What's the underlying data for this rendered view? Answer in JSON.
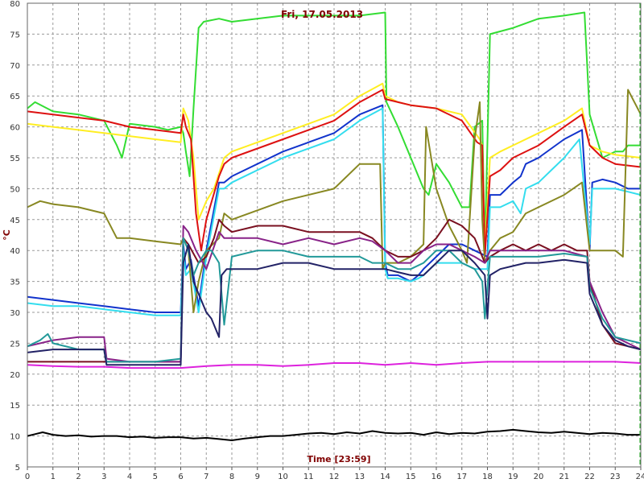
{
  "chart_data": {
    "type": "line",
    "title": "Fri, 17.05.2013",
    "xlabel": "Time [23:59]",
    "ylabel": "°C",
    "xlim": [
      0,
      24
    ],
    "ylim": [
      5,
      80
    ],
    "xticks": [
      "0",
      "1",
      "2",
      "3",
      "4",
      "5",
      "6",
      "7",
      "8",
      "9",
      "10",
      "11",
      "12",
      "13",
      "14",
      "15",
      "16",
      "17",
      "18",
      "19",
      "20",
      "21",
      "22",
      "23",
      "24"
    ],
    "yticks": [
      "5",
      "10",
      "15",
      "20",
      "25",
      "30",
      "35",
      "40",
      "45",
      "50",
      "55",
      "60",
      "65",
      "70",
      "75",
      "80"
    ],
    "grid": true,
    "end_marker_x": 24,
    "series": [
      {
        "color": "#33dd33",
        "x": [
          0,
          0.3,
          1,
          2,
          3,
          3.5,
          3.7,
          4,
          5,
          5.5,
          6,
          6.1,
          6.2,
          6.35,
          6.5,
          6.7,
          6.9,
          7.5,
          8,
          10,
          12,
          13,
          14,
          14.05,
          14.5,
          15,
          15.5,
          15.7,
          16,
          16.5,
          17,
          17.3,
          17.5,
          17.8,
          17.9,
          18.1,
          19,
          20,
          21,
          21.8,
          22,
          22.5,
          23,
          23.3,
          23.5,
          24
        ],
        "y": [
          63,
          64,
          62.5,
          62,
          61,
          57,
          55,
          60.5,
          60,
          59.5,
          60,
          59,
          56,
          52,
          63,
          76,
          77,
          77.5,
          77,
          78,
          78,
          78,
          78.5,
          64,
          60,
          55,
          50,
          49,
          54,
          51,
          47,
          47,
          60,
          61,
          40,
          75,
          76,
          77.5,
          78,
          78.5,
          62,
          55,
          56,
          56,
          57,
          57
        ]
      },
      {
        "color": "#ffee22",
        "x": [
          0,
          1,
          2,
          3,
          4,
          5,
          6,
          6.1,
          6.3,
          6.5,
          6.7,
          7,
          7.3,
          7.7,
          8,
          10,
          12,
          13,
          13.9,
          14,
          14.5,
          15,
          16,
          17,
          17.7,
          17.8,
          17.9,
          18.1,
          18.5,
          19,
          20,
          21,
          21.7,
          22,
          22.5,
          23,
          24
        ],
        "y": [
          60.5,
          60,
          59.5,
          59,
          58.5,
          58,
          57.5,
          63,
          61,
          55,
          45,
          48,
          50,
          55,
          56,
          59,
          62,
          65,
          67,
          65,
          64,
          63.5,
          63,
          62,
          58,
          57,
          40,
          55,
          56,
          57,
          59,
          61,
          63,
          57,
          56,
          55.5,
          55
        ]
      },
      {
        "color": "#dd1111",
        "x": [
          0,
          1,
          2,
          3,
          4,
          5,
          6,
          6.1,
          6.2,
          6.4,
          6.6,
          6.8,
          7,
          7.5,
          7.7,
          8,
          10,
          12,
          13,
          13.9,
          14,
          14.5,
          15,
          16,
          17,
          17.6,
          17.8,
          17.9,
          18.1,
          18.5,
          19,
          20,
          21,
          21.7,
          22,
          22.5,
          23,
          24
        ],
        "y": [
          62.5,
          62,
          61.5,
          61,
          60,
          59.5,
          59,
          62,
          60,
          58,
          46,
          40,
          45,
          52,
          54,
          55,
          58,
          61,
          64,
          66,
          64.5,
          64,
          63.5,
          63,
          61,
          57.5,
          57,
          39,
          52,
          53,
          55,
          57,
          60,
          62,
          57,
          55,
          54,
          53.5
        ]
      },
      {
        "color": "#1133cc",
        "x": [
          0,
          1,
          2,
          3,
          4,
          5,
          6,
          6.1,
          6.2,
          6.4,
          6.7,
          7,
          7.5,
          7.7,
          8,
          10,
          12,
          13,
          13.9,
          14,
          14.1,
          14.5,
          15,
          15.3,
          15.5,
          16,
          16.5,
          17,
          17.5,
          18,
          18.1,
          18.5,
          19,
          19.3,
          19.5,
          20,
          21,
          21.7,
          22,
          22.1,
          22.5,
          23,
          23.5,
          24
        ],
        "y": [
          32.5,
          32,
          31.5,
          31,
          30.5,
          30,
          30,
          41,
          37,
          38.5,
          31,
          40,
          51,
          51,
          52,
          56,
          59,
          62,
          63.5,
          38,
          36,
          36,
          35,
          36,
          37,
          39,
          41,
          41,
          40,
          39,
          49,
          49,
          51,
          52,
          54,
          55,
          58,
          59.5,
          40,
          51,
          51.5,
          51,
          50,
          50
        ]
      },
      {
        "color": "#33ddee",
        "x": [
          0,
          1,
          2,
          3,
          4,
          5,
          6,
          6.1,
          6.2,
          6.4,
          6.7,
          7,
          7.5,
          7.7,
          8,
          10,
          12,
          13,
          13.9,
          14,
          14.1,
          14.5,
          15,
          15.3,
          15.5,
          16,
          16.5,
          17,
          17.5,
          18,
          18.1,
          18.5,
          19,
          19.3,
          19.5,
          20,
          21,
          21.6,
          22,
          22.1,
          22.5,
          23,
          23.5,
          24
        ],
        "y": [
          31.5,
          31,
          31,
          30.5,
          30,
          29.5,
          29.5,
          40,
          36,
          37,
          30,
          39,
          50,
          50,
          51,
          55,
          58,
          61,
          63,
          37,
          35.5,
          35.5,
          35,
          35.5,
          36,
          38,
          38,
          38,
          37,
          37,
          47,
          47,
          48,
          46,
          50,
          51,
          55,
          58,
          41,
          50,
          50,
          50,
          49.5,
          49
        ]
      },
      {
        "color": "#888822",
        "x": [
          0,
          0.5,
          1,
          2,
          3,
          3.5,
          4,
          5,
          6,
          6.1,
          6.3,
          6.5,
          6.7,
          7,
          7.5,
          7.7,
          8,
          10,
          12,
          13,
          13.8,
          13.9,
          14,
          14.5,
          15,
          15.5,
          15.6,
          15.8,
          16,
          16.5,
          17,
          17.2,
          17.5,
          17.7,
          17.8,
          17.9,
          18.1,
          18.5,
          19,
          19.5,
          20,
          21,
          21.7,
          22,
          22.5,
          23,
          23.3,
          23.5,
          24
        ],
        "y": [
          47,
          48,
          47.5,
          47,
          46,
          42,
          42,
          41.5,
          41,
          42,
          40,
          30,
          35,
          40,
          42,
          46,
          45,
          48,
          50,
          54,
          54,
          37,
          38,
          38,
          39,
          41,
          60,
          55,
          50,
          44,
          40,
          38,
          58,
          64,
          45,
          38,
          40,
          42,
          43,
          46,
          47,
          49,
          51,
          40,
          40,
          40,
          39,
          66,
          62
        ]
      },
      {
        "color": "#7a1020",
        "x": [
          0,
          1,
          2,
          3,
          4,
          5,
          6,
          6.1,
          6.3,
          6.7,
          7,
          7.3,
          7.5,
          7.7,
          8,
          9,
          10,
          11,
          12,
          13,
          13.5,
          14,
          14.5,
          15,
          15.5,
          16,
          16.5,
          17,
          17.5,
          17.7,
          17.9,
          18.1,
          18.5,
          19,
          19.5,
          20,
          20.5,
          21,
          21.5,
          21.9,
          22,
          22.5,
          23,
          23.5,
          24
        ],
        "y": [
          22,
          22,
          22,
          22,
          22,
          22,
          22,
          42,
          41,
          38,
          39,
          42,
          45,
          44,
          43,
          44,
          44,
          43,
          43,
          43,
          42,
          40,
          39,
          39,
          40,
          42,
          45,
          44,
          42,
          40,
          38,
          39,
          40,
          41,
          40,
          41,
          40,
          41,
          40,
          40,
          35,
          28,
          25,
          24.5,
          24
        ]
      },
      {
        "color": "#882288",
        "x": [
          0,
          1,
          2,
          3,
          3.1,
          4,
          5,
          6,
          6.1,
          6.3,
          6.6,
          7,
          7.5,
          7.7,
          8,
          9,
          10,
          11,
          12,
          13,
          13.5,
          14,
          14.5,
          15,
          15.5,
          16,
          16.5,
          17,
          17.5,
          17.9,
          18.1,
          18.5,
          19,
          19.5,
          20,
          21,
          21.9,
          22,
          22.5,
          23,
          23.5,
          24
        ],
        "y": [
          24.5,
          25.5,
          26,
          26,
          22.5,
          22,
          22,
          22,
          44,
          43,
          40,
          37,
          43,
          42,
          42,
          42,
          41,
          42,
          41,
          42,
          41.5,
          40,
          38,
          38,
          40,
          41,
          41,
          40,
          39,
          38,
          40,
          40,
          40,
          40,
          40,
          40,
          39,
          35,
          30,
          26,
          25,
          24
        ]
      },
      {
        "color": "#229999",
        "x": [
          0,
          0.5,
          0.8,
          1,
          2,
          3,
          3.1,
          4,
          5,
          6,
          6.1,
          6.3,
          6.5,
          6.7,
          7,
          7.2,
          7.5,
          7.7,
          8,
          9,
          10,
          11,
          12,
          13,
          13.5,
          14,
          14.5,
          15,
          15.5,
          16,
          16.5,
          17,
          17.5,
          17.8,
          17.9,
          18,
          18.1,
          18.5,
          19,
          19.5,
          20,
          21,
          21.9,
          22,
          22.5,
          23,
          23.5,
          24
        ],
        "y": [
          24.5,
          25.5,
          26.5,
          25,
          24,
          24,
          22,
          22,
          22,
          22.5,
          42,
          40,
          36,
          38,
          40,
          40,
          38,
          28,
          39,
          40,
          40,
          39,
          39,
          39,
          38,
          38,
          37,
          37,
          38,
          40,
          40,
          38,
          37,
          35,
          29,
          34,
          39,
          39,
          39,
          39,
          39,
          39.5,
          39,
          34,
          29,
          26,
          25.5,
          25
        ]
      },
      {
        "color": "#222266",
        "x": [
          0,
          1,
          2,
          3,
          3.1,
          4,
          5,
          6,
          6.1,
          6.3,
          6.5,
          6.7,
          7,
          7.2,
          7.5,
          7.6,
          7.8,
          8,
          9,
          10,
          11,
          12,
          13,
          13.5,
          14,
          14.5,
          15,
          15.5,
          16,
          16.5,
          17,
          17.5,
          17.9,
          18,
          18.1,
          18.5,
          19,
          19.5,
          20,
          21,
          21.9,
          22,
          22.5,
          23,
          23.5,
          24
        ],
        "y": [
          23.5,
          24,
          24,
          24,
          21.5,
          21.5,
          21.5,
          21.5,
          38,
          41,
          35,
          33,
          30,
          29,
          26,
          36,
          37,
          37,
          37,
          38,
          38,
          37,
          37,
          37,
          37,
          36.5,
          36,
          36,
          38,
          40,
          40,
          38,
          36,
          29,
          36,
          37,
          37.5,
          38,
          38,
          38.5,
          38,
          33,
          28,
          25.5,
          24.5,
          24
        ]
      },
      {
        "color": "#dd22dd",
        "x": [
          0,
          1,
          2,
          3,
          4,
          5,
          6,
          7,
          8,
          9,
          10,
          11,
          12,
          13,
          14,
          15,
          16,
          17,
          18,
          19,
          20,
          21,
          22,
          23,
          24
        ],
        "y": [
          21.5,
          21.3,
          21.2,
          21.2,
          21,
          21,
          21,
          21.3,
          21.5,
          21.5,
          21.3,
          21.5,
          21.8,
          21.8,
          21.5,
          21.8,
          21.5,
          21.8,
          22,
          22,
          22,
          22,
          22,
          22,
          21.8
        ]
      },
      {
        "color": "#000000",
        "x": [
          0,
          0.3,
          0.6,
          1,
          1.5,
          2,
          2.5,
          3,
          3.5,
          4,
          4.5,
          5,
          5.5,
          6,
          6.5,
          7,
          7.5,
          8,
          8.5,
          9,
          9.5,
          10,
          10.5,
          11,
          11.5,
          12,
          12.5,
          13,
          13.5,
          14,
          14.5,
          15,
          15.5,
          16,
          16.5,
          17,
          17.5,
          18,
          18.5,
          19,
          19.5,
          20,
          20.5,
          21,
          21.5,
          22,
          22.5,
          23,
          23.5,
          24
        ],
        "y": [
          10,
          10.3,
          10.6,
          10.2,
          10,
          10.1,
          9.9,
          10,
          10,
          9.8,
          9.9,
          9.7,
          9.8,
          9.8,
          9.6,
          9.7,
          9.5,
          9.3,
          9.6,
          9.8,
          10,
          10,
          10.2,
          10.4,
          10.5,
          10.3,
          10.6,
          10.4,
          10.8,
          10.5,
          10.4,
          10.5,
          10.2,
          10.6,
          10.3,
          10.5,
          10.4,
          10.7,
          10.8,
          11,
          10.8,
          10.6,
          10.5,
          10.7,
          10.5,
          10.3,
          10.5,
          10.4,
          10.2,
          10.2
        ]
      }
    ]
  }
}
